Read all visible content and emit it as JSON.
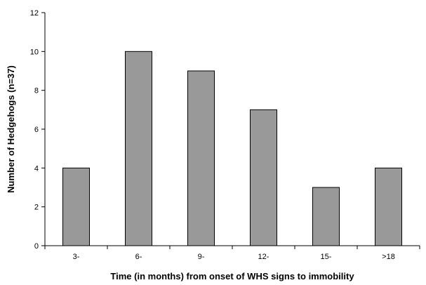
{
  "chart_data": {
    "type": "bar",
    "title": "",
    "xlabel": "Time (in months) from onset of WHS signs to immobility",
    "ylabel": "Number of Hedgehogs (n=37)",
    "categories": [
      "3-",
      "6-",
      "9-",
      "12-",
      "15-",
      ">18"
    ],
    "values": [
      4,
      10,
      9,
      7,
      3,
      4
    ],
    "ylim": [
      0,
      12
    ],
    "yticks": [
      0,
      2,
      4,
      6,
      8,
      10,
      12
    ],
    "grid": false,
    "legend": "none",
    "colors": {
      "bar_fill": "#999999",
      "bar_stroke": "#000000",
      "axis": "#000000"
    }
  }
}
